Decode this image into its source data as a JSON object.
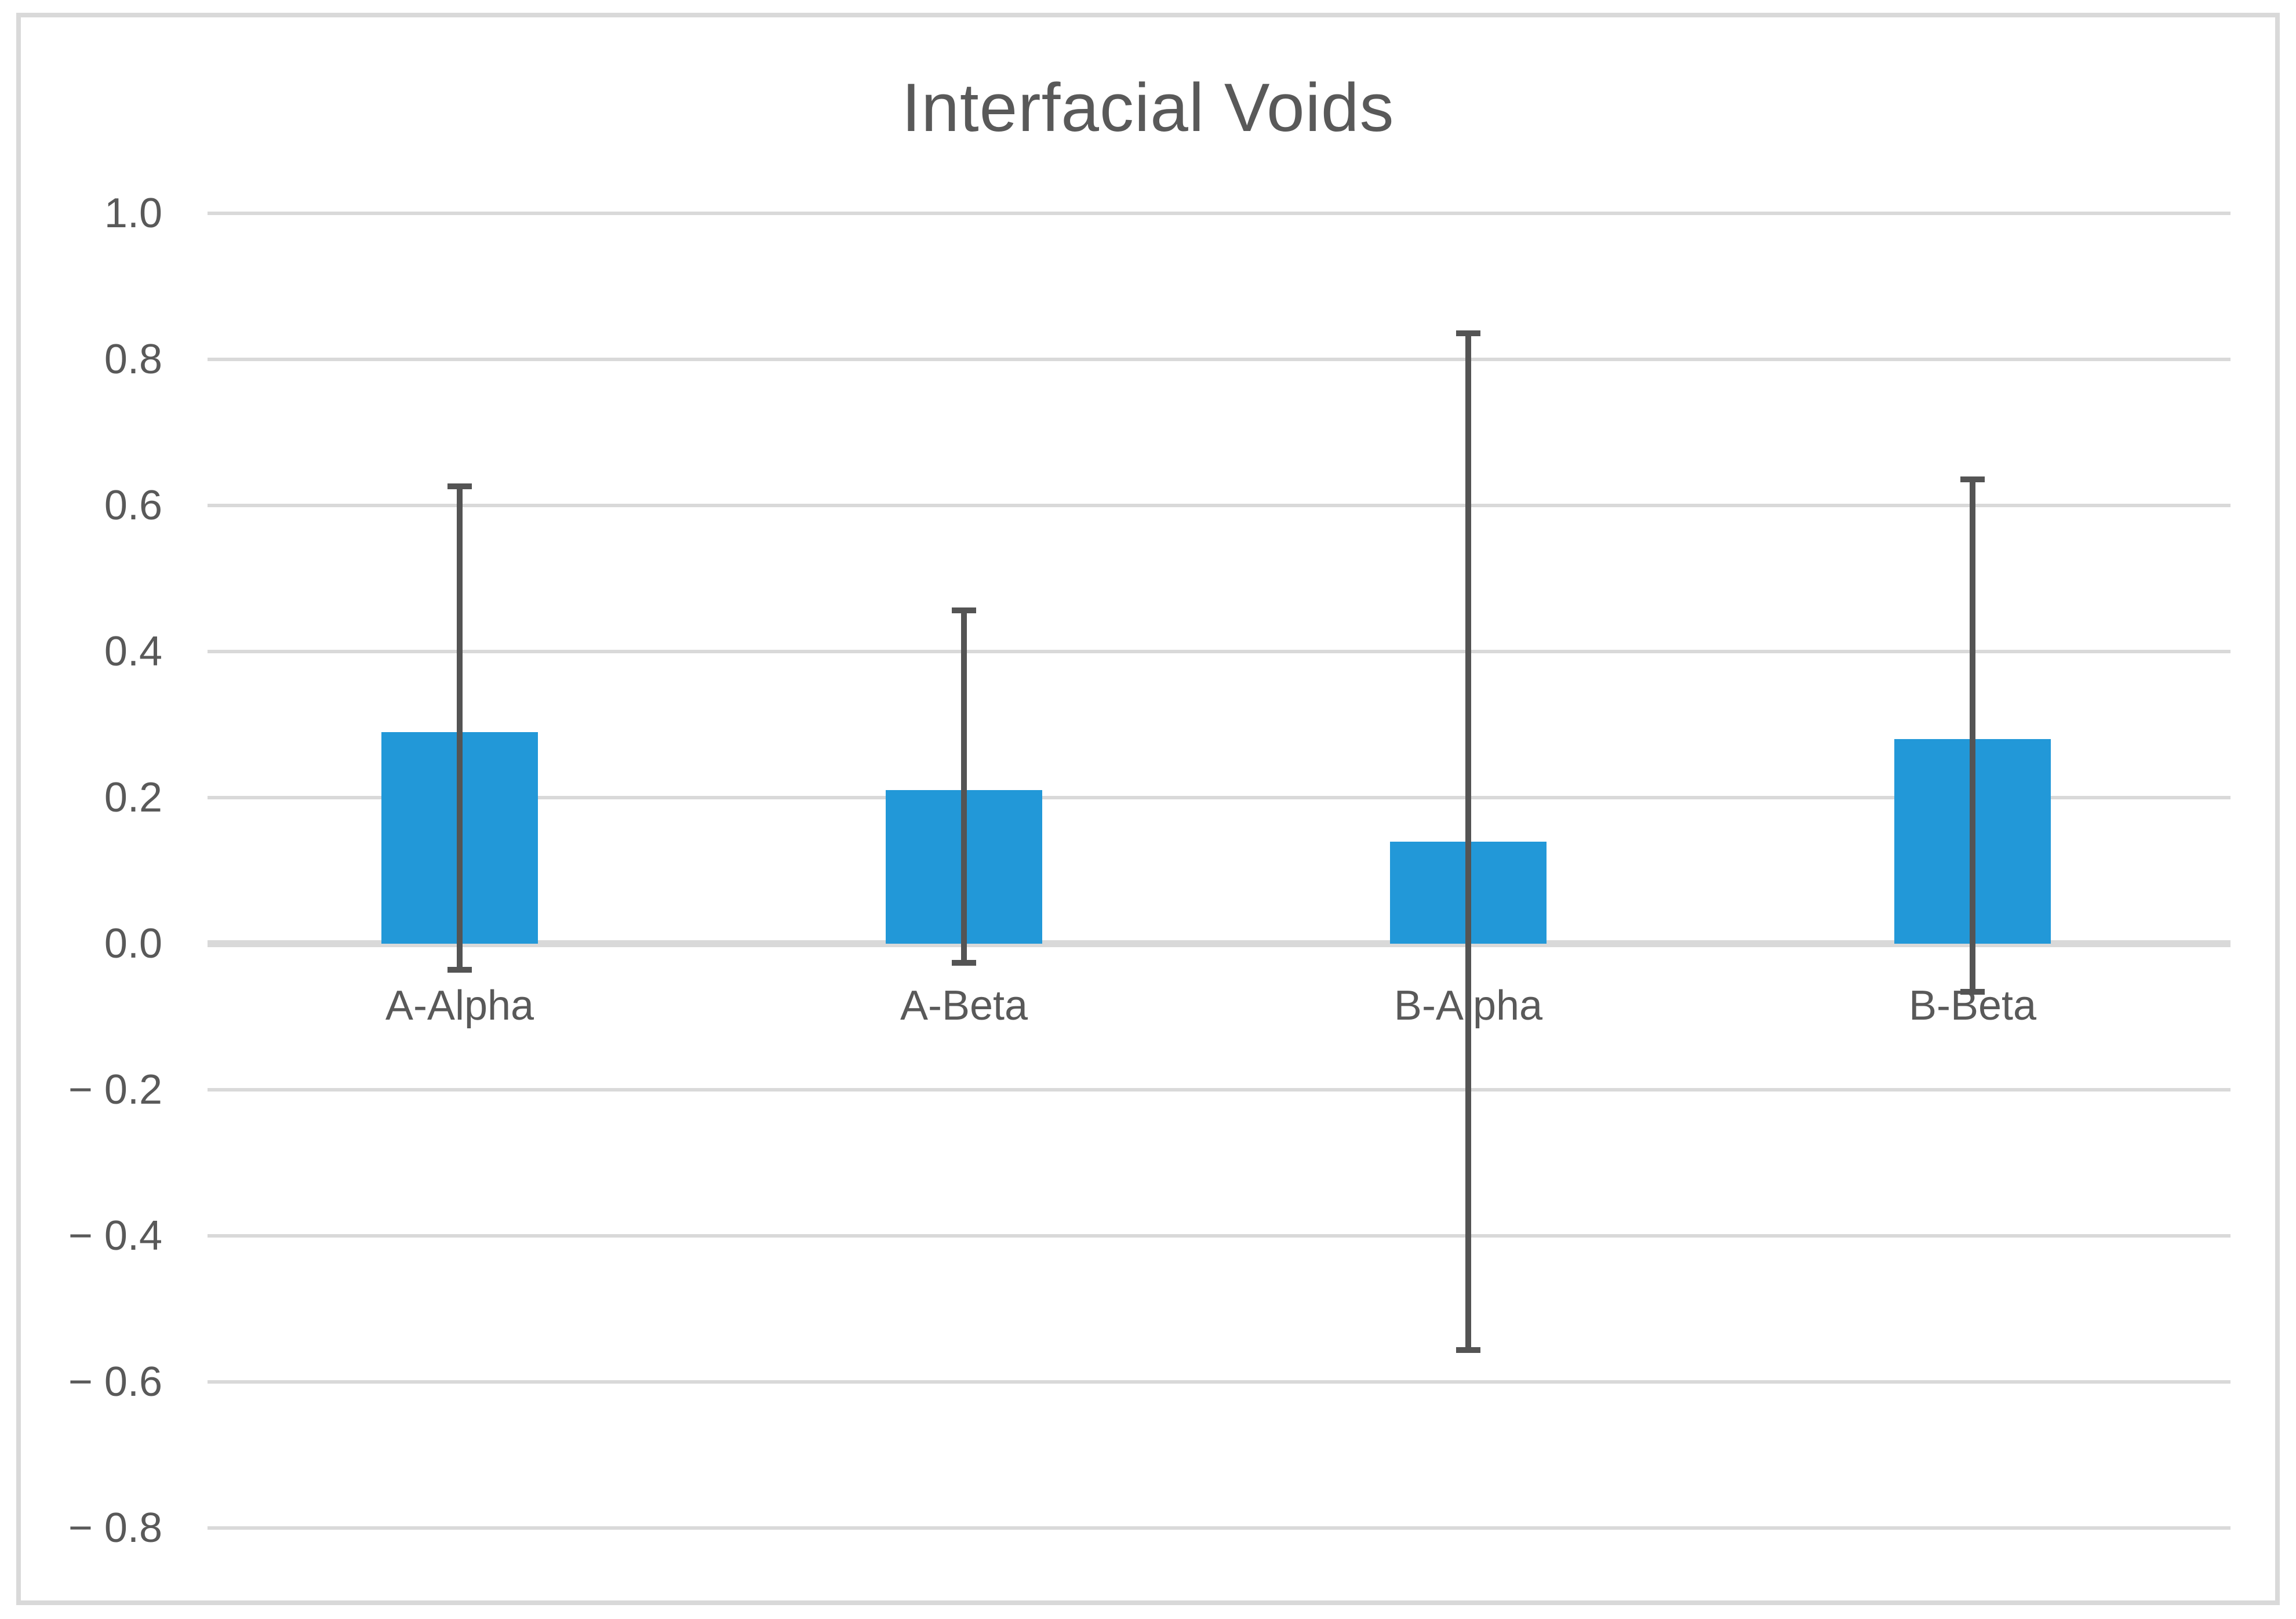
{
  "title": "Interfacial Voids",
  "colors": {
    "bar": "#2298d8",
    "gridline": "#d9d9d9",
    "zero_line": "#d9d9d9",
    "border": "#d9d9d9",
    "text": "#595959",
    "error_bar": "#545454",
    "background": "#ffffff"
  },
  "chart_data": {
    "type": "bar",
    "title": "Interfacial Voids",
    "categories": [
      "A-Alpha",
      "A-Beta",
      "B-Alpha",
      "B-Beta"
    ],
    "values": [
      0.29,
      0.21,
      0.14,
      0.28
    ],
    "error_top": [
      0.63,
      0.46,
      0.84,
      0.64
    ],
    "error_bottom": [
      -0.04,
      -0.03,
      -0.56,
      -0.07
    ],
    "y_ticks": [
      "1.0",
      "0.8",
      "0.6",
      "0.4",
      "0.2",
      "0.0",
      "− 0.2",
      "− 0.4",
      "− 0.6",
      "− 0.8"
    ],
    "y_tick_values": [
      1.0,
      0.8,
      0.6,
      0.4,
      0.2,
      0.0,
      -0.2,
      -0.4,
      -0.6,
      -0.8
    ],
    "ylim": [
      -0.9,
      1.1
    ],
    "xlabel": "",
    "ylabel": "",
    "grid": true,
    "legend": false
  }
}
